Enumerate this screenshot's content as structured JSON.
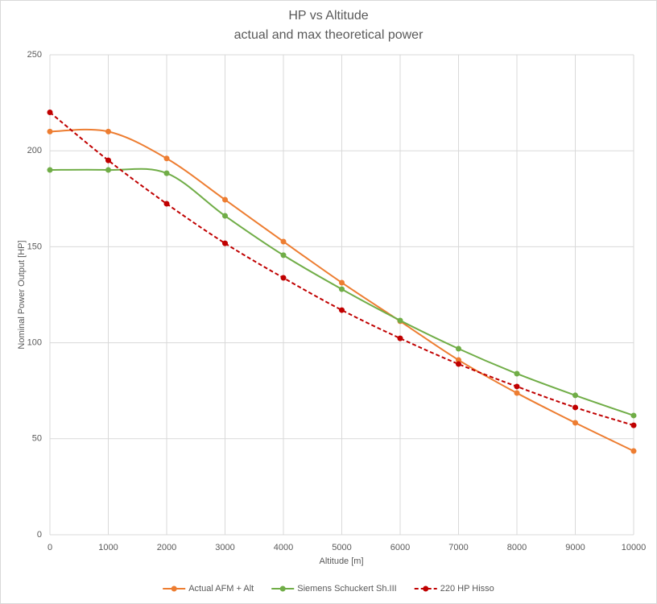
{
  "chart_data": {
    "type": "line",
    "title": "HP vs Altitude",
    "subtitle": "actual and max theoretical power",
    "x_label": "Altitude [m]",
    "y_label": "Nominal Power Output [HP]",
    "x": [
      0,
      1000,
      2000,
      3000,
      4000,
      5000,
      6000,
      7000,
      8000,
      9000,
      10000
    ],
    "xlim": [
      0,
      10000
    ],
    "xticks": [
      0,
      1000,
      2000,
      3000,
      4000,
      5000,
      6000,
      7000,
      8000,
      9000,
      10000
    ],
    "ylim": [
      0,
      250
    ],
    "yticks": [
      0,
      50,
      100,
      150,
      200,
      250
    ],
    "grid": true,
    "legend": "bottom",
    "series": [
      {
        "name": "Actual AFM + Alt",
        "color": "#ed7d31",
        "smooth": true,
        "dashed": false,
        "values": [
          210,
          210,
          196,
          174.5,
          152.7,
          131.3,
          111.2,
          91,
          73.8,
          58.3,
          43.6
        ]
      },
      {
        "name": "Siemens Schuckert Sh.III",
        "color": "#70ad47",
        "smooth": true,
        "dashed": false,
        "values": [
          190,
          190,
          188.3,
          166.1,
          145.6,
          127.9,
          111.6,
          96.9,
          83.9,
          72.6,
          62.1
        ]
      },
      {
        "name": "220 HP Hisso",
        "color": "#c00000",
        "smooth": true,
        "dashed": true,
        "values": [
          220,
          195,
          172.4,
          151.8,
          133.8,
          117,
          102.3,
          88.9,
          77.2,
          66.3,
          57
        ]
      }
    ]
  }
}
